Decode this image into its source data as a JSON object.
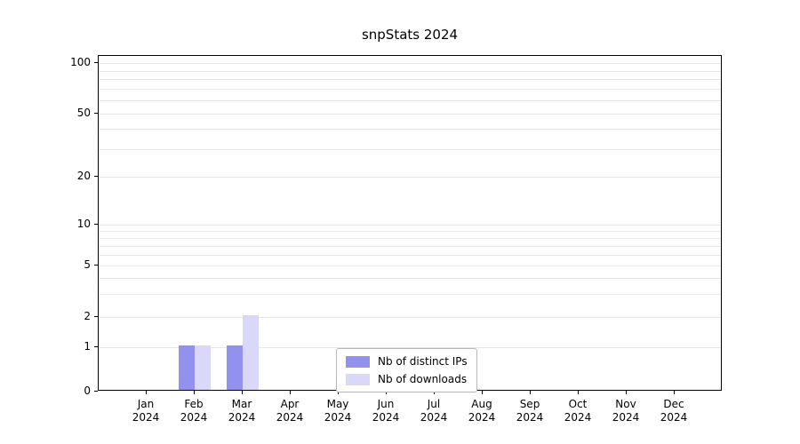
{
  "chart_data": {
    "type": "bar",
    "title": "snpStats 2024",
    "categories": [
      "Jan",
      "Feb",
      "Mar",
      "Apr",
      "May",
      "Jun",
      "Jul",
      "Aug",
      "Sep",
      "Oct",
      "Nov",
      "Dec"
    ],
    "year": "2024",
    "series": [
      {
        "name": "Nb of distinct IPs",
        "color": "#9391ee",
        "values": [
          0,
          1,
          1,
          0,
          0,
          0,
          0,
          0,
          0,
          0,
          0,
          0
        ]
      },
      {
        "name": "Nb of downloads",
        "color": "#d9d8f8",
        "values": [
          0,
          1,
          2,
          0,
          0,
          0,
          0,
          0,
          0,
          0,
          0,
          0
        ]
      }
    ],
    "yticks": [
      0,
      1,
      2,
      5,
      10,
      20,
      50,
      100
    ],
    "ylim": [
      0,
      100
    ],
    "yscale": "log-like-with-zero",
    "grid": "horizontal-minor",
    "legend_position": "bottom-center-inside"
  }
}
